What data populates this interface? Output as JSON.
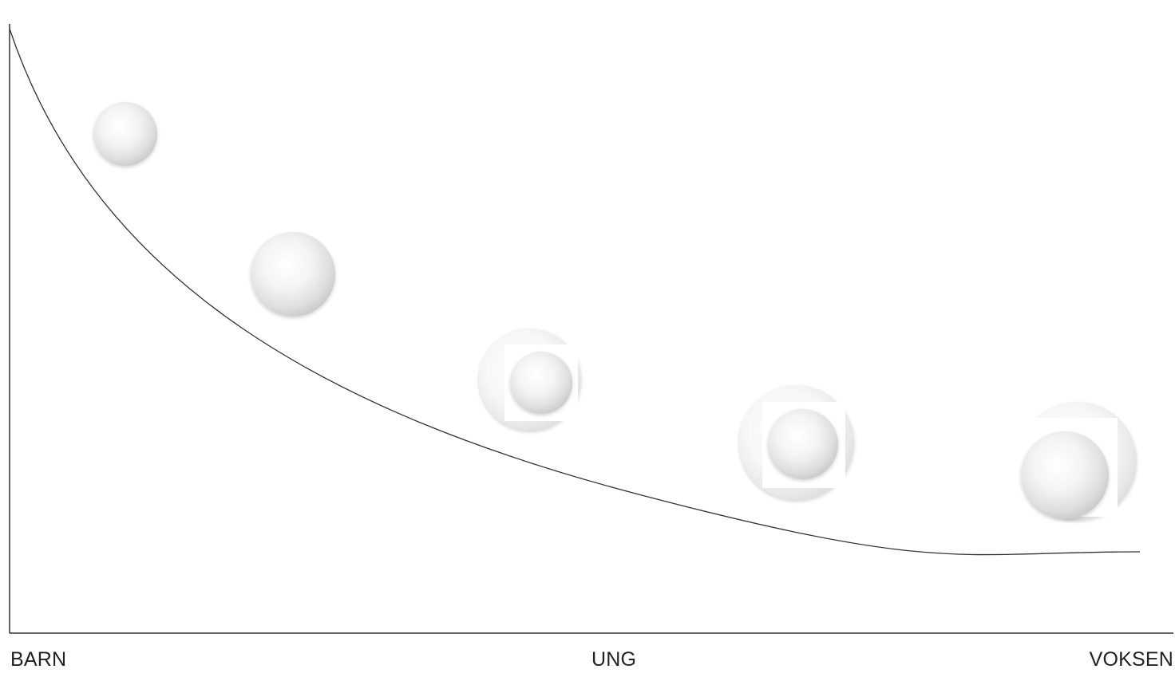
{
  "diagram": {
    "x_axis_labels": {
      "start": "BARN",
      "middle": "UNG",
      "end": "VOKSEN"
    },
    "curve": "decreasing",
    "snowballs": [
      {
        "label": "snowball-1",
        "layers": 1
      },
      {
        "label": "snowball-2",
        "layers": 1
      },
      {
        "label": "snowball-3",
        "layers": 2
      },
      {
        "label": "snowball-4",
        "layers": 2
      },
      {
        "label": "snowball-5",
        "layers": 2
      }
    ]
  },
  "colors": {
    "line": "#333333",
    "text": "#222222",
    "ball_highlight": "#ffffff",
    "ball_shadow": "#cfcfcf"
  }
}
